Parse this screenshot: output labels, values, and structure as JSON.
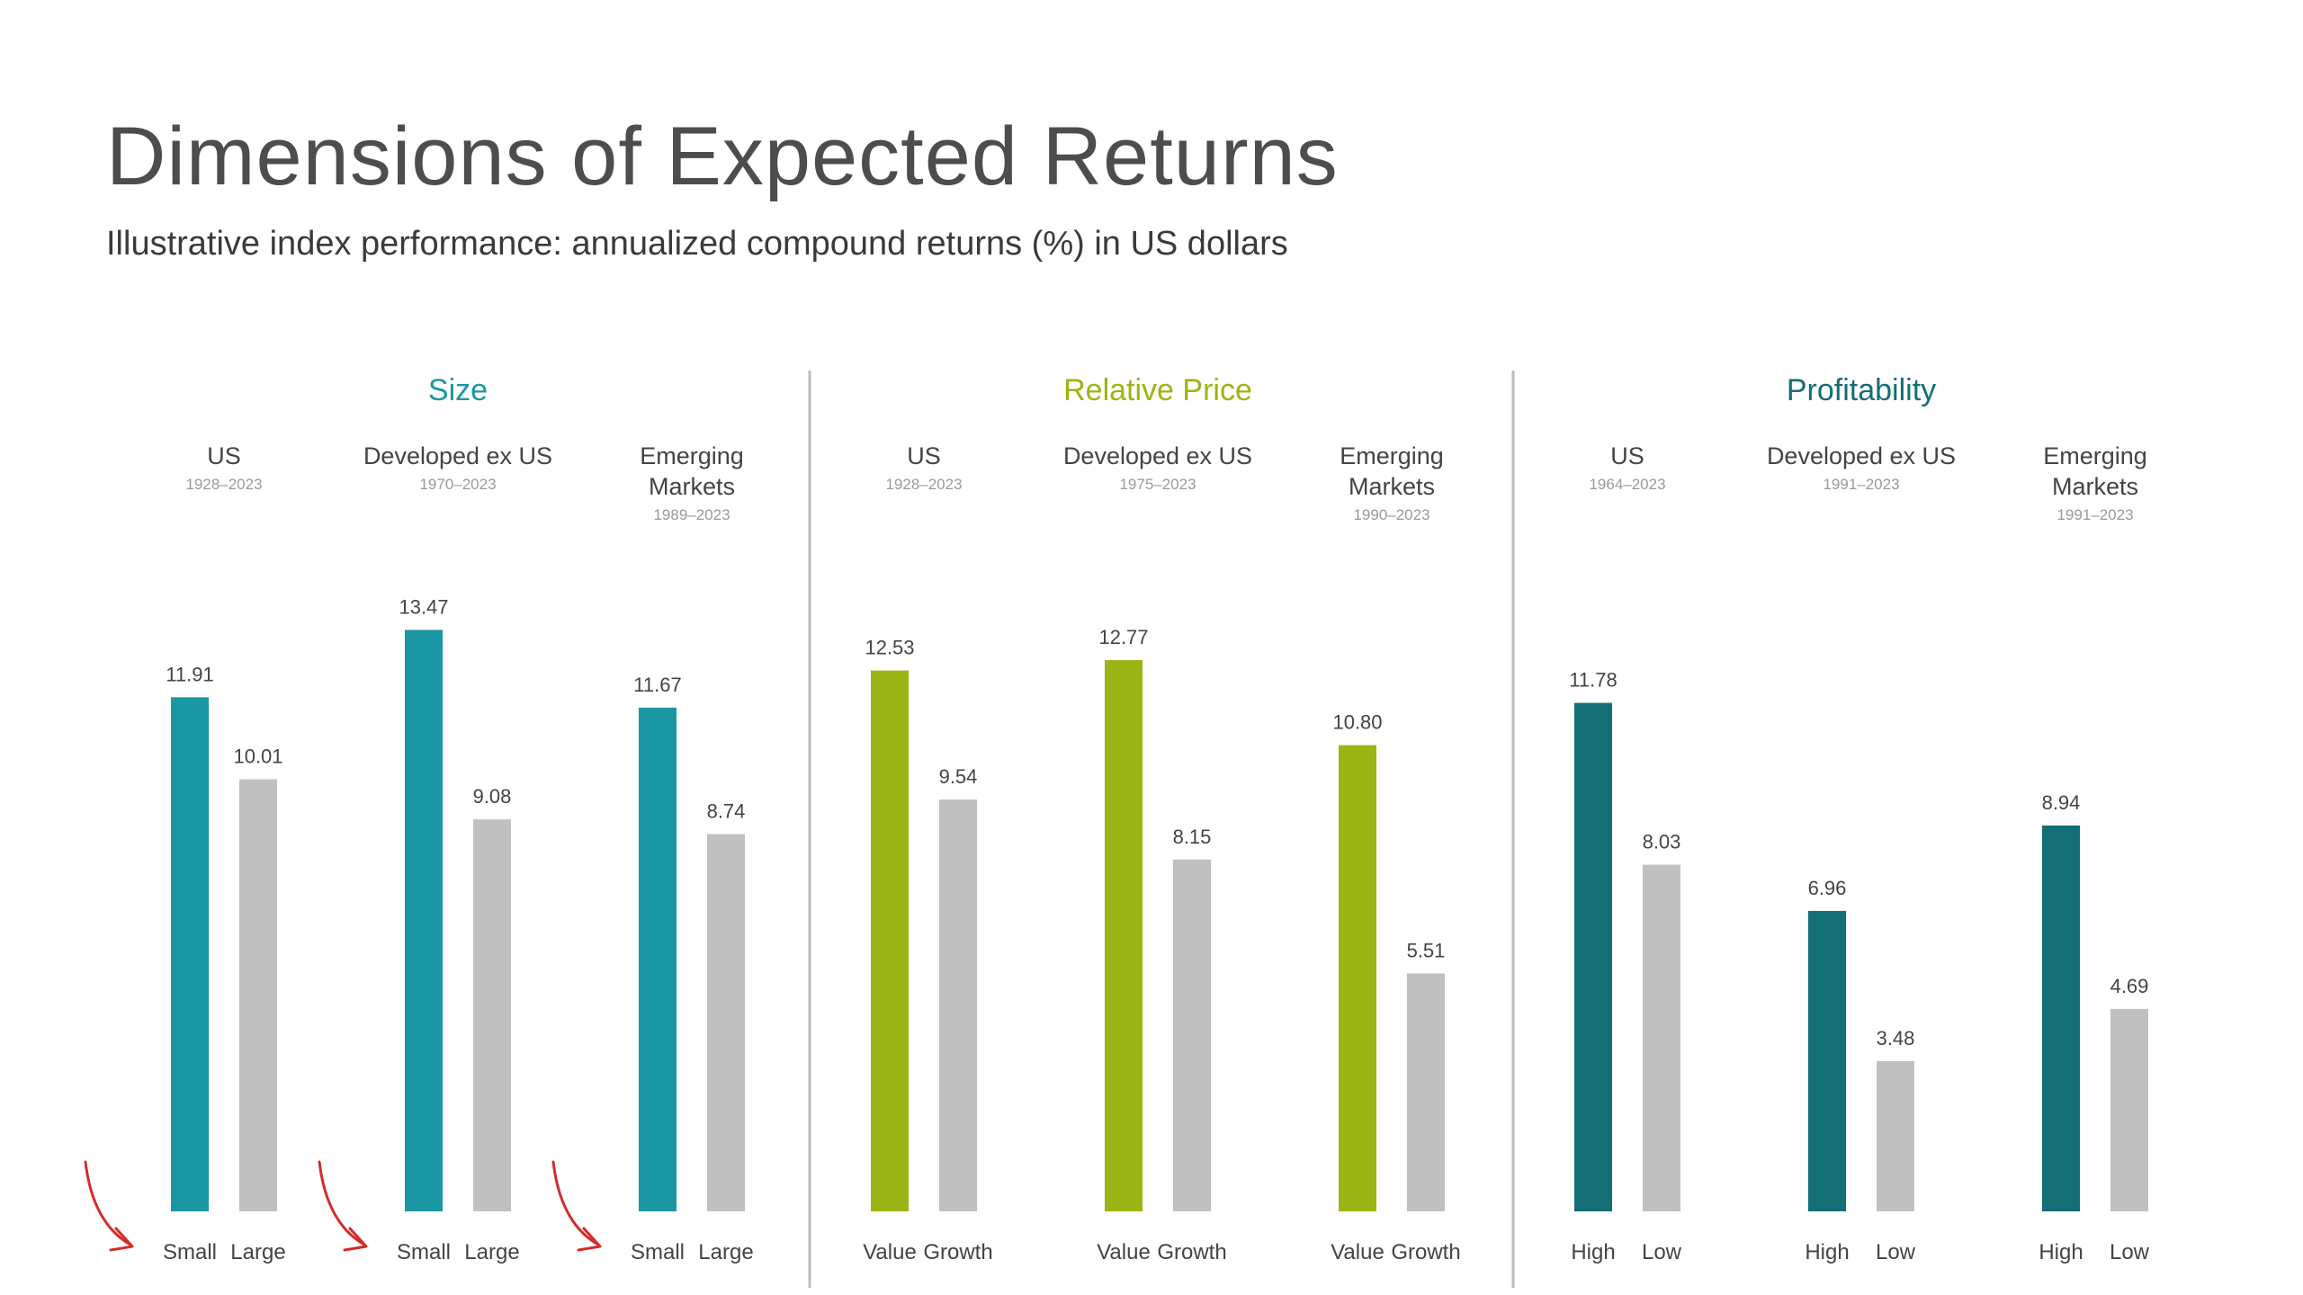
{
  "title": "Dimensions of Expected Returns",
  "subtitle": "Illustrative index performance: annualized compound returns (%) in US dollars",
  "colors": {
    "size": "#1a97a2",
    "relative_price": "#9bb514",
    "profitability": "#146e75",
    "comparison": "#c0c0c0",
    "divider": "#bdbdbd",
    "arrow": "#d42b2b"
  },
  "chart_data": {
    "type": "bar",
    "title": "Dimensions of Expected Returns",
    "subtitle": "Illustrative index performance: annualized compound returns (%) in US dollars",
    "ylim": [
      0,
      15
    ],
    "grid": false,
    "groups": [
      {
        "name": "Size",
        "color_key": "size",
        "markets": [
          {
            "label": [
              "US"
            ],
            "period": "1928–2023",
            "categories": [
              "Small",
              "Large"
            ],
            "values": [
              11.91,
              10.01
            ]
          },
          {
            "label": [
              "Developed ex US"
            ],
            "period": "1970–2023",
            "categories": [
              "Small",
              "Large"
            ],
            "values": [
              13.47,
              9.08
            ]
          },
          {
            "label": [
              "Emerging",
              "Markets"
            ],
            "period": "1989–2023",
            "categories": [
              "Small",
              "Large"
            ],
            "values": [
              11.67,
              8.74
            ]
          }
        ]
      },
      {
        "name": "Relative Price",
        "color_key": "relative_price",
        "markets": [
          {
            "label": [
              "US"
            ],
            "period": "1928–2023",
            "categories": [
              "Value",
              "Growth"
            ],
            "values": [
              12.53,
              9.54
            ]
          },
          {
            "label": [
              "Developed ex US"
            ],
            "period": "1975–2023",
            "categories": [
              "Value",
              "Growth"
            ],
            "values": [
              12.77,
              8.15
            ]
          },
          {
            "label": [
              "Emerging",
              "Markets"
            ],
            "period": "1990–2023",
            "categories": [
              "Value",
              "Growth"
            ],
            "values": [
              10.8,
              5.51
            ]
          }
        ]
      },
      {
        "name": "Profitability",
        "color_key": "profitability",
        "markets": [
          {
            "label": [
              "US"
            ],
            "period": "1964–2023",
            "categories": [
              "High",
              "Low"
            ],
            "values": [
              11.78,
              8.03
            ]
          },
          {
            "label": [
              "Developed ex US"
            ],
            "period": "1991–2023",
            "categories": [
              "High",
              "Low"
            ],
            "values": [
              6.96,
              3.48
            ]
          },
          {
            "label": [
              "Emerging",
              "Markets"
            ],
            "period": "1991–2023",
            "categories": [
              "High",
              "Low"
            ],
            "values": [
              8.94,
              4.69
            ]
          }
        ]
      }
    ]
  }
}
